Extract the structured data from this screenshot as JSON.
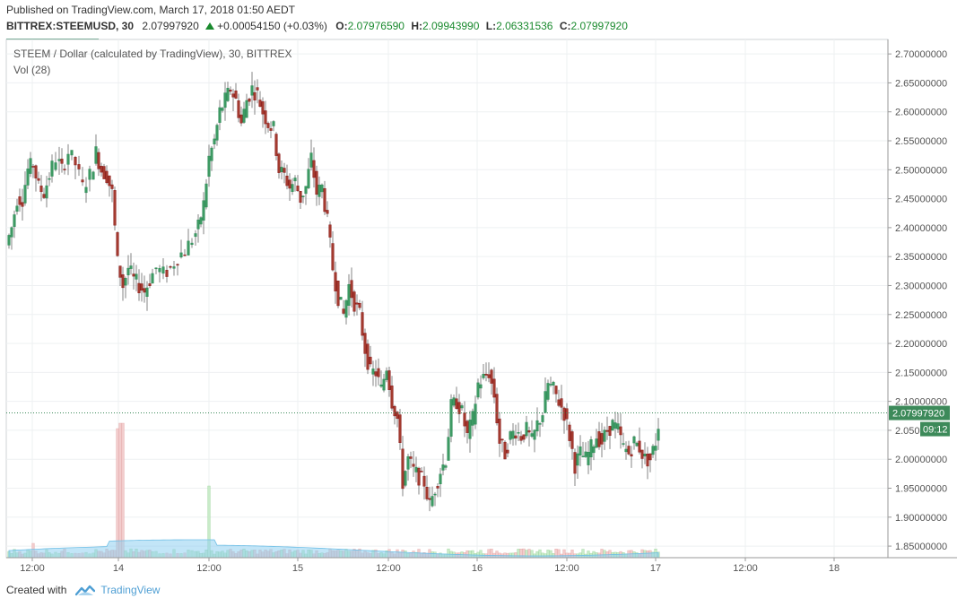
{
  "header": {
    "published": "Published on TradingView.com, March 17, 2018 01:50 AEDT"
  },
  "quote": {
    "symbol": "BITTREX:STEEMUSD, 30",
    "last": "2.07997920",
    "change": "+0.00054150 (+0.03%)",
    "o_label": "O:",
    "o_value": "2.07976590",
    "h_label": "H:",
    "h_value": "2.09943990",
    "l_label": "L:",
    "l_value": "2.06331536",
    "c_label": "C:",
    "c_value": "2.07997920"
  },
  "footer": {
    "created_with": "Created with",
    "brand": "TradingView"
  },
  "colors": {
    "up": "#2e8b57",
    "up_fill": "#3d9a63",
    "down": "#8b1a1a",
    "down_fill": "#a33a2e",
    "grid": "#eef0f2",
    "axis": "#666666",
    "vol_up": "#c8ebc8",
    "vol_down": "#f2cccc",
    "vol_ma": "#8fd0f0",
    "last_price_badge": "#3d8a5a"
  },
  "chart_data": {
    "type": "candlestick",
    "title": "STEEM / Dollar (calculated by TradingView), 30, BITTREX",
    "indicator": "Vol (28)",
    "xlabel": "",
    "ylabel": "",
    "ylim": [
      1.83,
      2.725
    ],
    "x_ticks": [
      "12:00",
      "14",
      "12:00",
      "15",
      "12:00",
      "16",
      "12:00",
      "17",
      "12:00",
      "18"
    ],
    "y_ticks": [
      "2.70000000",
      "2.65000000",
      "2.60000000",
      "2.55000000",
      "2.50000000",
      "2.45000000",
      "2.40000000",
      "2.35000000",
      "2.30000000",
      "2.25000000",
      "2.20000000",
      "2.15000000",
      "2.10000000",
      "2.05000000",
      "2.00000000",
      "1.95000000",
      "1.90000000",
      "1.85000000"
    ],
    "last_price_label": "2.07997920",
    "countdown_label": "09:12",
    "grid": true,
    "close_path": [
      [
        0,
        2.37
      ],
      [
        6,
        2.4
      ],
      [
        12,
        2.45
      ],
      [
        18,
        2.45
      ],
      [
        24,
        2.5
      ],
      [
        30,
        2.51
      ],
      [
        36,
        2.47
      ],
      [
        42,
        2.46
      ],
      [
        48,
        2.49
      ],
      [
        56,
        2.52
      ],
      [
        62,
        2.5
      ],
      [
        70,
        2.53
      ],
      [
        78,
        2.51
      ],
      [
        86,
        2.47
      ],
      [
        94,
        2.49
      ],
      [
        100,
        2.53
      ],
      [
        106,
        2.5
      ],
      [
        112,
        2.49
      ],
      [
        118,
        2.46
      ],
      [
        124,
        2.34
      ],
      [
        130,
        2.3
      ],
      [
        136,
        2.33
      ],
      [
        142,
        2.31
      ],
      [
        148,
        2.3
      ],
      [
        154,
        2.29
      ],
      [
        160,
        2.31
      ],
      [
        168,
        2.33
      ],
      [
        176,
        2.32
      ],
      [
        184,
        2.33
      ],
      [
        192,
        2.35
      ],
      [
        200,
        2.36
      ],
      [
        208,
        2.38
      ],
      [
        214,
        2.4
      ],
      [
        220,
        2.44
      ],
      [
        226,
        2.52
      ],
      [
        232,
        2.55
      ],
      [
        238,
        2.6
      ],
      [
        244,
        2.62
      ],
      [
        250,
        2.64
      ],
      [
        256,
        2.62
      ],
      [
        262,
        2.58
      ],
      [
        268,
        2.62
      ],
      [
        274,
        2.64
      ],
      [
        280,
        2.63
      ],
      [
        286,
        2.6
      ],
      [
        292,
        2.58
      ],
      [
        298,
        2.57
      ],
      [
        304,
        2.5
      ],
      [
        310,
        2.49
      ],
      [
        316,
        2.47
      ],
      [
        322,
        2.48
      ],
      [
        328,
        2.45
      ],
      [
        334,
        2.47
      ],
      [
        340,
        2.52
      ],
      [
        346,
        2.46
      ],
      [
        352,
        2.47
      ],
      [
        358,
        2.41
      ],
      [
        364,
        2.33
      ],
      [
        370,
        2.28
      ],
      [
        376,
        2.25
      ],
      [
        382,
        2.3
      ],
      [
        388,
        2.27
      ],
      [
        394,
        2.25
      ],
      [
        400,
        2.19
      ],
      [
        406,
        2.15
      ],
      [
        412,
        2.15
      ],
      [
        418,
        2.12
      ],
      [
        424,
        2.16
      ],
      [
        430,
        2.1
      ],
      [
        436,
        2.07
      ],
      [
        442,
        1.96
      ],
      [
        448,
        2.0
      ],
      [
        454,
        1.98
      ],
      [
        460,
        1.97
      ],
      [
        466,
        1.96
      ],
      [
        472,
        1.92
      ],
      [
        478,
        1.95
      ],
      [
        484,
        1.98
      ],
      [
        490,
        2.0
      ],
      [
        496,
        2.09
      ],
      [
        502,
        2.1
      ],
      [
        508,
        2.08
      ],
      [
        514,
        2.04
      ],
      [
        520,
        2.07
      ],
      [
        526,
        2.13
      ],
      [
        532,
        2.14
      ],
      [
        538,
        2.15
      ],
      [
        544,
        2.11
      ],
      [
        550,
        2.03
      ],
      [
        556,
        2.01
      ],
      [
        562,
        2.04
      ],
      [
        568,
        2.05
      ],
      [
        574,
        2.04
      ],
      [
        580,
        2.05
      ],
      [
        586,
        2.03
      ],
      [
        592,
        2.06
      ],
      [
        598,
        2.08
      ],
      [
        604,
        2.13
      ],
      [
        610,
        2.12
      ],
      [
        616,
        2.1
      ],
      [
        622,
        2.08
      ],
      [
        628,
        2.04
      ],
      [
        634,
        1.99
      ],
      [
        640,
        2.01
      ],
      [
        646,
        2.0
      ],
      [
        652,
        2.02
      ],
      [
        658,
        2.04
      ],
      [
        664,
        2.03
      ],
      [
        670,
        2.05
      ],
      [
        676,
        2.06
      ],
      [
        682,
        2.05
      ],
      [
        688,
        2.02
      ],
      [
        694,
        2.01
      ],
      [
        700,
        2.03
      ],
      [
        706,
        2.02
      ],
      [
        712,
        2.0
      ],
      [
        718,
        2.0
      ],
      [
        724,
        2.03
      ],
      [
        730,
        2.09
      ],
      [
        736,
        2.08
      ],
      [
        740,
        2.08
      ]
    ],
    "volume_spikes": [
      {
        "x": 124,
        "v": 0.09
      },
      {
        "x": 128,
        "v": 0.1
      },
      {
        "x": 226,
        "v": 0.05
      },
      {
        "x": 30,
        "v": 0.01
      }
    ]
  }
}
